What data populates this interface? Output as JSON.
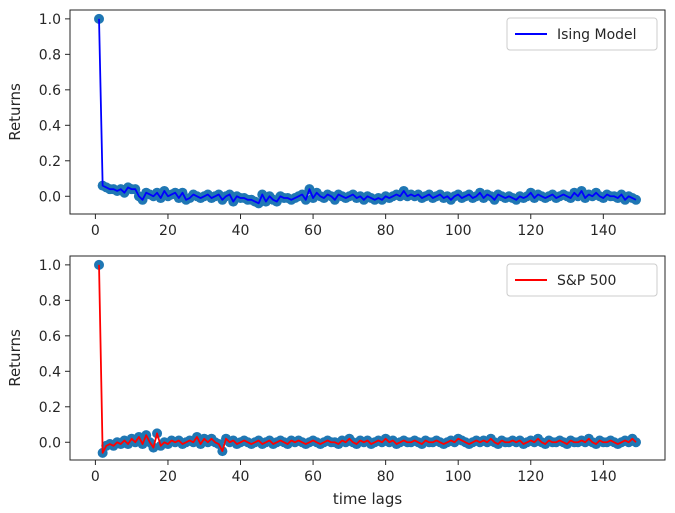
{
  "chart_data": [
    {
      "type": "line",
      "title": "",
      "xlabel": "",
      "ylabel": "Returns",
      "xlim": [
        -7,
        157
      ],
      "ylim": [
        -0.1,
        1.05
      ],
      "xticks": [
        0,
        20,
        40,
        60,
        80,
        100,
        120,
        140
      ],
      "yticks": [
        0.0,
        0.2,
        0.4,
        0.6,
        0.8,
        1.0
      ],
      "xtick_labels": [
        "0",
        "20",
        "40",
        "60",
        "80",
        "100",
        "120",
        "140"
      ],
      "ytick_labels": [
        "0.0",
        "0.2",
        "0.4",
        "0.6",
        "0.8",
        "1.0"
      ],
      "legend": "top-right",
      "series": [
        {
          "name": "Ising Model",
          "line_color": "#0000ff",
          "marker_color": "#1f77b4",
          "x_start": 1,
          "values": [
            1.0,
            0.06,
            0.05,
            0.04,
            0.04,
            0.03,
            0.04,
            0.02,
            0.05,
            0.04,
            0.04,
            0.0,
            -0.02,
            0.02,
            0.01,
            0.0,
            0.02,
            -0.01,
            0.03,
            0.0,
            0.01,
            0.02,
            -0.01,
            0.02,
            -0.02,
            -0.01,
            0.01,
            0.0,
            -0.01,
            0.0,
            0.01,
            -0.01,
            0.0,
            0.01,
            -0.02,
            0.0,
            0.01,
            -0.03,
            0.0,
            -0.01,
            -0.01,
            -0.02,
            -0.02,
            -0.03,
            -0.04,
            0.01,
            -0.03,
            0.0,
            -0.02,
            -0.03,
            0.0,
            -0.01,
            -0.01,
            -0.02,
            -0.01,
            0.0,
            0.01,
            -0.02,
            0.04,
            -0.01,
            0.02,
            0.0,
            -0.01,
            0.01,
            0.0,
            -0.02,
            0.01,
            0.0,
            -0.01,
            0.0,
            0.01,
            -0.01,
            0.0,
            -0.02,
            0.0,
            -0.01,
            -0.02,
            -0.01,
            -0.02,
            0.0,
            -0.01,
            0.0,
            0.01,
            0.0,
            0.03,
            0.0,
            0.01,
            0.0,
            0.01,
            -0.01,
            0.0,
            0.01,
            -0.01,
            0.0,
            0.01,
            -0.01,
            0.0,
            -0.02,
            0.0,
            0.01,
            -0.01,
            0.0,
            0.01,
            -0.01,
            0.0,
            0.02,
            -0.01,
            0.01,
            0.0,
            -0.02,
            0.01,
            0.0,
            -0.01,
            0.0,
            -0.01,
            -0.02,
            0.0,
            -0.01,
            0.0,
            0.02,
            -0.01,
            0.01,
            0.0,
            -0.01,
            0.0,
            0.01,
            -0.01,
            0.0,
            0.01,
            0.0,
            -0.01,
            0.02,
            0.0,
            0.03,
            -0.01,
            0.01,
            0.0,
            0.02,
            0.0,
            -0.01,
            0.01,
            0.0,
            0.0,
            -0.01,
            0.01,
            -0.02,
            0.0,
            -0.01,
            -0.02
          ]
        }
      ]
    },
    {
      "type": "line",
      "title": "",
      "xlabel": "time lags",
      "ylabel": "Returns",
      "xlim": [
        -7,
        157
      ],
      "ylim": [
        -0.1,
        1.05
      ],
      "xticks": [
        0,
        20,
        40,
        60,
        80,
        100,
        120,
        140
      ],
      "yticks": [
        0.0,
        0.2,
        0.4,
        0.6,
        0.8,
        1.0
      ],
      "xtick_labels": [
        "0",
        "20",
        "40",
        "60",
        "80",
        "100",
        "120",
        "140"
      ],
      "ytick_labels": [
        "0.0",
        "0.2",
        "0.4",
        "0.6",
        "0.8",
        "1.0"
      ],
      "legend": "top-right",
      "series": [
        {
          "name": "S&P 500",
          "line_color": "#ff0000",
          "marker_color": "#1f77b4",
          "x_start": 1,
          "values": [
            1.0,
            -0.06,
            -0.02,
            -0.01,
            -0.02,
            0.0,
            -0.01,
            0.01,
            -0.01,
            0.02,
            0.0,
            0.03,
            -0.01,
            0.04,
            0.0,
            -0.03,
            0.05,
            -0.02,
            0.0,
            -0.01,
            0.01,
            0.0,
            0.01,
            -0.01,
            0.0,
            0.01,
            0.0,
            0.03,
            -0.01,
            0.02,
            0.0,
            0.02,
            0.0,
            -0.01,
            -0.05,
            0.02,
            0.0,
            0.01,
            -0.01,
            0.0,
            0.01,
            0.0,
            -0.01,
            0.0,
            0.01,
            -0.01,
            0.0,
            0.01,
            -0.01,
            0.0,
            0.01,
            0.0,
            -0.01,
            0.01,
            0.0,
            0.01,
            0.0,
            -0.01,
            0.0,
            0.01,
            0.0,
            -0.01,
            0.0,
            0.01,
            0.0,
            0.0,
            -0.01,
            0.01,
            0.0,
            0.02,
            0.0,
            -0.01,
            0.01,
            0.0,
            0.01,
            -0.01,
            0.0,
            0.01,
            0.0,
            0.02,
            0.0,
            0.01,
            -0.01,
            0.0,
            0.01,
            0.0,
            0.0,
            0.01,
            0.0,
            -0.01,
            0.01,
            0.0,
            0.0,
            0.01,
            0.0,
            -0.01,
            0.0,
            0.01,
            0.0,
            0.02,
            0.01,
            0.0,
            -0.01,
            0.0,
            0.01,
            0.0,
            0.01,
            0.0,
            0.02,
            0.0,
            -0.01,
            0.01,
            0.0,
            0.0,
            0.01,
            0.0,
            0.01,
            -0.01,
            0.0,
            0.01,
            0.0,
            0.02,
            0.0,
            -0.01,
            0.01,
            0.0,
            0.0,
            0.01,
            0.0,
            -0.01,
            0.01,
            0.0,
            0.0,
            0.01,
            0.0,
            0.02,
            0.0,
            -0.01,
            0.01,
            0.0,
            0.0,
            0.01,
            0.0,
            -0.01,
            0.0,
            0.01,
            0.0,
            0.02,
            0.0
          ]
        }
      ]
    }
  ]
}
